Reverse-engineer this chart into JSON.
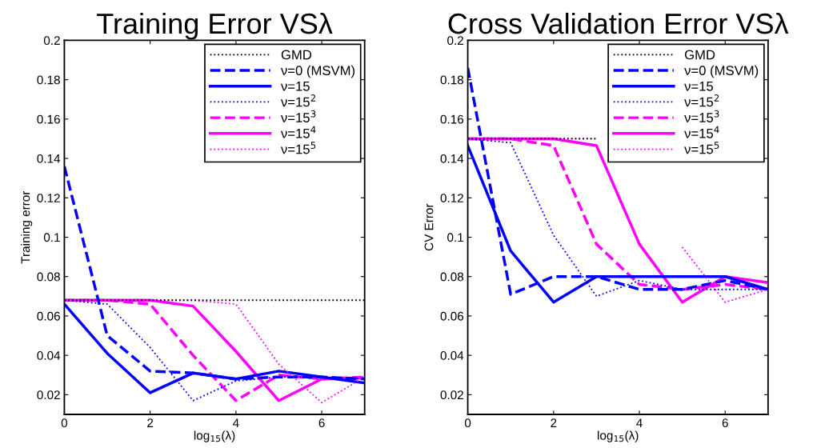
{
  "chart_data": [
    {
      "type": "line",
      "title": "Training Error VSλ",
      "xlabel": "log$_{15}$(λ)",
      "ylabel": "Training error",
      "x": [
        0,
        1,
        2,
        3,
        4,
        5,
        6,
        7
      ],
      "xlim": [
        0,
        7
      ],
      "xticks": [
        0,
        2,
        4,
        6
      ],
      "ylim": [
        0.01,
        0.2
      ],
      "yticks": [
        0.02,
        0.04,
        0.06,
        0.08,
        0.1,
        0.12,
        0.14,
        0.16,
        0.18,
        0.2
      ],
      "legend": "top right",
      "grid": false,
      "marker": "none",
      "series": [
        {
          "name": "GMD",
          "color": "#000000",
          "line_style": "dotted",
          "values": [
            0.068,
            0.068,
            0.068,
            0.068,
            0.068,
            0.068,
            0.068,
            0.068
          ]
        },
        {
          "name": "ν=0 (MSVM)",
          "color": "#0000ff",
          "line_style": "dashed",
          "values": [
            0.136,
            0.05,
            0.032,
            0.031,
            0.028,
            0.029,
            0.029,
            0.028
          ]
        },
        {
          "name": "ν=15",
          "color": "#0000ff",
          "line_style": "solid",
          "values": [
            0.066,
            0.041,
            0.021,
            0.031,
            0.028,
            0.032,
            0.029,
            0.026
          ]
        },
        {
          "name": "ν=15$^{2}$",
          "color": "#0000ff",
          "line_style": "dotted",
          "values": [
            0.068,
            0.066,
            0.044,
            0.017,
            0.027,
            0.029,
            0.029,
            0.028
          ]
        },
        {
          "name": "ν=15$^{3}$",
          "color": "#ff00ff",
          "line_style": "dashed",
          "values": [
            0.068,
            0.068,
            0.066,
            0.04,
            0.017,
            0.03,
            0.028,
            0.029
          ]
        },
        {
          "name": "ν=15$^{4}$",
          "color": "#ff00ff",
          "line_style": "solid",
          "values": [
            0.068,
            0.068,
            0.068,
            0.065,
            0.042,
            0.017,
            0.028,
            0.0285
          ]
        },
        {
          "name": "ν=15$^{5}$",
          "color": "#ff00ff",
          "line_style": "dotted",
          "values": [
            0.068,
            0.068,
            0.068,
            0.068,
            0.066,
            0.0355,
            0.016,
            0.029
          ]
        }
      ]
    },
    {
      "type": "line",
      "title": "Cross Validation Error VSλ",
      "xlabel": "log$_{15}$(λ)",
      "ylabel": "CV Error",
      "x": [
        0,
        1,
        2,
        3,
        4,
        5,
        6,
        7
      ],
      "xlim": [
        0,
        7
      ],
      "xticks": [
        0,
        2,
        4,
        6
      ],
      "ylim": [
        0.01,
        0.2
      ],
      "yticks": [
        0.02,
        0.04,
        0.06,
        0.08,
        0.1,
        0.12,
        0.14,
        0.16,
        0.18,
        0.2
      ],
      "legend": "top right",
      "grid": false,
      "marker": "none",
      "series": [
        {
          "name": "GMD",
          "color": "#000000",
          "line_style": "dotted",
          "values": [
            0.15,
            0.15,
            0.15,
            0.15,
            null,
            null,
            null,
            null
          ]
        },
        {
          "name": "ν=0 (MSVM)",
          "color": "#0000ff",
          "line_style": "dashed",
          "values": [
            0.186,
            0.071,
            0.08,
            0.08,
            0.0735,
            0.0735,
            0.078,
            0.0735
          ]
        },
        {
          "name": "ν=15",
          "color": "#0000ff",
          "line_style": "solid",
          "values": [
            0.1465,
            0.093,
            0.067,
            0.08,
            0.08,
            0.08,
            0.08,
            0.0735
          ]
        },
        {
          "name": "ν=15$^{2}$",
          "color": "#0000ff",
          "line_style": "dotted",
          "values": [
            0.15,
            0.148,
            0.101,
            0.07,
            0.078,
            0.0735,
            0.0735,
            0.0735
          ]
        },
        {
          "name": "ν=15$^{3}$",
          "color": "#ff00ff",
          "line_style": "dashed",
          "values": [
            0.15,
            0.15,
            0.1465,
            0.0965,
            0.076,
            0.0735,
            0.076,
            0.0735
          ]
        },
        {
          "name": "ν=15$^{4}$",
          "color": "#ff00ff",
          "line_style": "solid",
          "values": [
            0.15,
            0.15,
            0.15,
            0.1465,
            0.0965,
            0.067,
            0.08,
            0.077
          ]
        },
        {
          "name": "ν=15$^{5}$",
          "color": "#ff00ff",
          "line_style": "dotted",
          "values": [
            0.15,
            0.15,
            0.15,
            0.15,
            null,
            0.095,
            0.067,
            0.0735
          ]
        }
      ]
    }
  ]
}
